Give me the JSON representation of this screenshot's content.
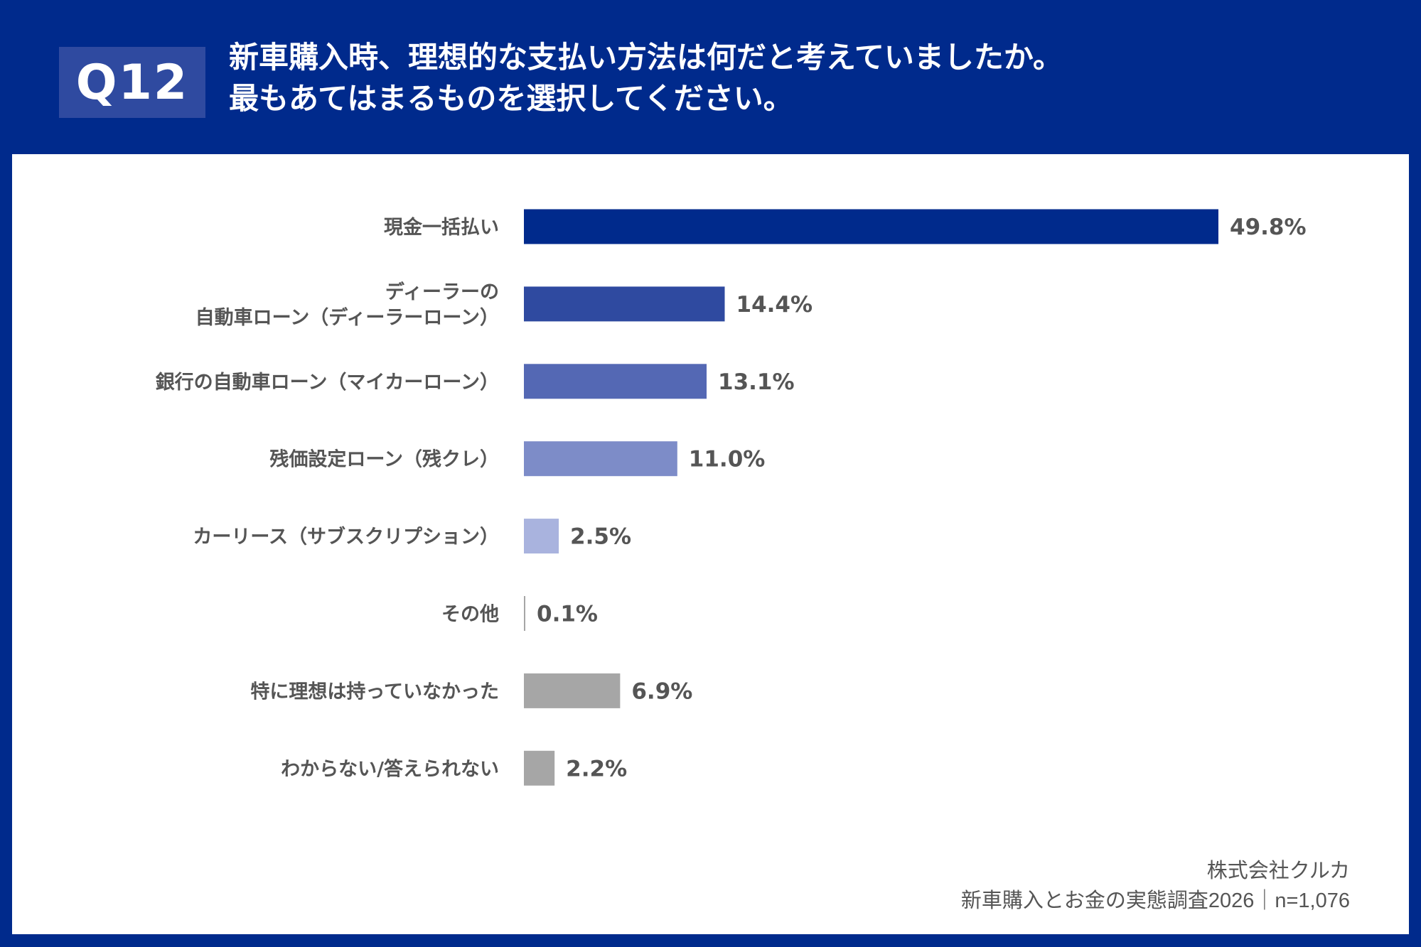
{
  "header": {
    "badge": "Q12",
    "title_line1": "新車購入時、理想的な支払い方法は何だと考えていましたか。",
    "title_line2": "最もあてはまるものを選択してください。"
  },
  "colors": {
    "background": "#002a8c",
    "panel": "#ffffff",
    "badge": "#2f4aa0"
  },
  "chart_data": {
    "type": "bar",
    "orientation": "horizontal",
    "categories": [
      [
        "現金一括払い"
      ],
      [
        "ディーラーの",
        "自動車ローン（ディーラーローン）"
      ],
      [
        "銀行の自動車ローン（マイカーローン）"
      ],
      [
        "残価設定ローン（残クレ）"
      ],
      [
        "カーリース（サブスクリプション）"
      ],
      [
        "その他"
      ],
      [
        "特に理想は持っていなかった"
      ],
      [
        "わからない/答えられない"
      ]
    ],
    "values": [
      49.8,
      14.4,
      13.1,
      11.0,
      2.5,
      0.1,
      6.9,
      2.2
    ],
    "value_labels": [
      "49.8%",
      "14.4%",
      "13.1%",
      "11.0%",
      "2.5%",
      "0.1%",
      "6.9%",
      "2.2%"
    ],
    "bar_colors": [
      "#002a8c",
      "#2f4aa0",
      "#5468b4",
      "#7d8cc8",
      "#a9b3de",
      "#a6a6a6",
      "#a6a6a6",
      "#a6a6a6"
    ],
    "grid": false,
    "legend": "none"
  },
  "source": {
    "company": "株式会社クルカ",
    "survey": "新車購入とお金の実態調査2026｜n=1,076"
  }
}
